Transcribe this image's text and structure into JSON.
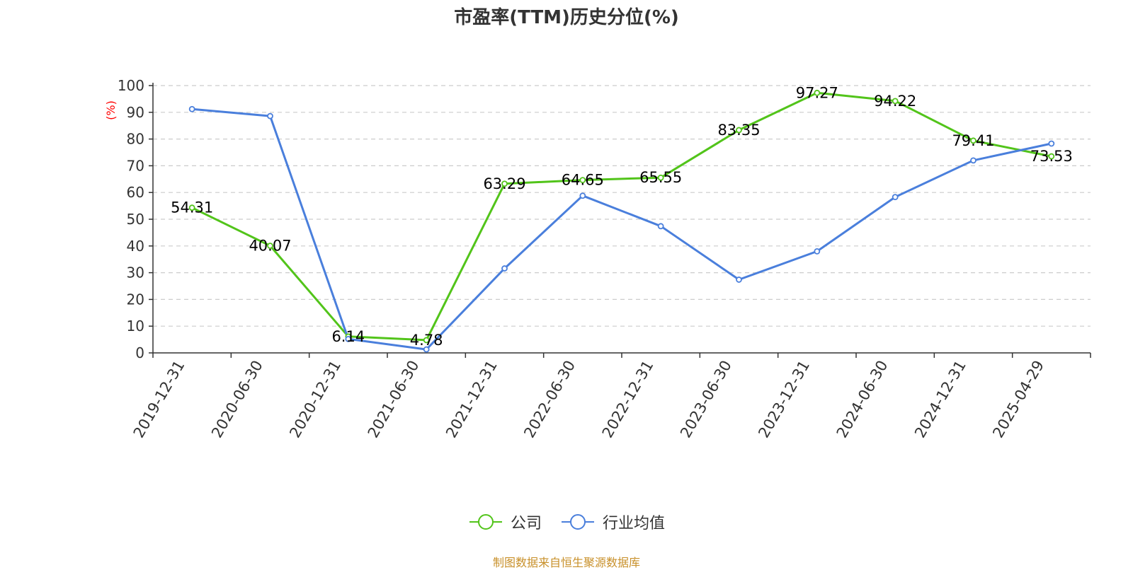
{
  "chart_data": {
    "type": "line",
    "title": "市盈率(TTM)历史分位(%)",
    "ylabel": "(%)",
    "xlabel": "",
    "ylim": [
      0,
      100
    ],
    "yticks": [
      0,
      10,
      20,
      30,
      40,
      50,
      60,
      70,
      80,
      90,
      100
    ],
    "grid": true,
    "legend_position": "bottom",
    "categories": [
      "2019-12-31",
      "2020-06-30",
      "2020-12-31",
      "2021-06-30",
      "2021-12-31",
      "2022-06-30",
      "2022-12-31",
      "2023-06-30",
      "2023-12-31",
      "2024-06-30",
      "2024-12-31",
      "2025-04-29"
    ],
    "series": [
      {
        "name": "公司",
        "color": "#52c41a",
        "values": [
          54.31,
          40.07,
          6.14,
          4.78,
          63.29,
          64.65,
          65.55,
          83.35,
          97.27,
          94.22,
          79.41,
          73.53
        ],
        "labels": [
          "54.31",
          "40.07",
          "6.14",
          "4.78",
          "63.29",
          "64.65",
          "65.55",
          "83.35",
          "97.27",
          "94.22",
          "79.41",
          "73.53"
        ]
      },
      {
        "name": "行业均值",
        "color": "#4a7fdc",
        "values": [
          91.2,
          88.6,
          5.2,
          1.3,
          31.6,
          58.8,
          47.4,
          27.4,
          38.0,
          58.3,
          72.0,
          78.3
        ]
      }
    ]
  },
  "source": "制图数据来自恒生聚源数据库"
}
